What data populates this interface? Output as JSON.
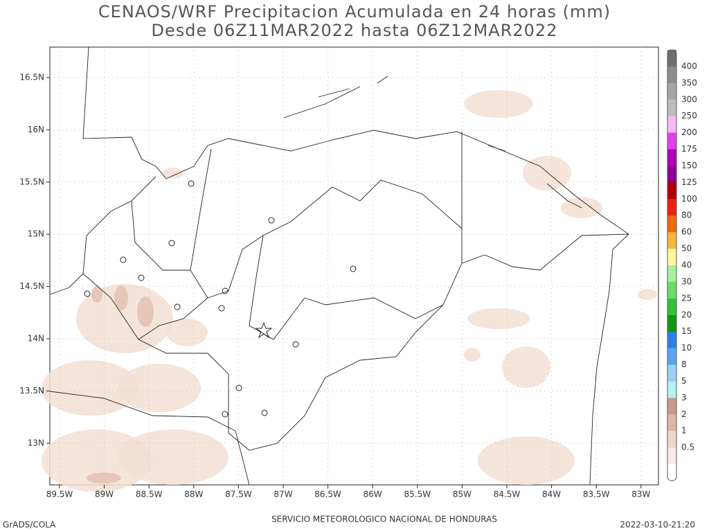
{
  "header": {
    "title": "CENAOS/WRF Precipitacion Acumulada en 24 horas (mm)",
    "subtitle": "Desde 06Z11MAR2022 hasta 06Z12MAR2022"
  },
  "map": {
    "lon_labels": [
      "89.5W",
      "89W",
      "88.5W",
      "88W",
      "87.5W",
      "87W",
      "86.5W",
      "86W",
      "85.5W",
      "85W",
      "84.5W",
      "84W",
      "83.5W",
      "83W"
    ],
    "lat_labels": [
      "16.5N",
      "16N",
      "15.5N",
      "15N",
      "14.5N",
      "14N",
      "13.5N",
      "13N"
    ]
  },
  "colorbar": {
    "labels": [
      "400",
      "350",
      "300",
      "250",
      "200",
      "175",
      "150",
      "125",
      "100",
      "80",
      "60",
      "50",
      "40",
      "30",
      "25",
      "20",
      "15",
      "10",
      "8",
      "5",
      "3",
      "2",
      "1",
      "0.5"
    ],
    "colors": [
      "#6e6e6e",
      "#8c8c8c",
      "#a6a6a6",
      "#bdbdbd",
      "#f6b9f6",
      "#e040e8",
      "#b000b8",
      "#900090",
      "#b00000",
      "#f02010",
      "#f06a10",
      "#f5b540",
      "#fff6a0",
      "#a8f0a0",
      "#6bdb6b",
      "#36c036",
      "#109810",
      "#2f7fe0",
      "#5aa6ee",
      "#9ccff6",
      "#b4f2f0",
      "#c89a8c",
      "#ddb7a8",
      "#eed8cc",
      "#f8ede6",
      "#ffffff"
    ]
  },
  "footer": {
    "left": "GrADS/COLA",
    "center": "SERVICIO METEOROLOGICO NACIONAL DE HONDURAS",
    "right": "2022-03-10-21:20"
  }
}
